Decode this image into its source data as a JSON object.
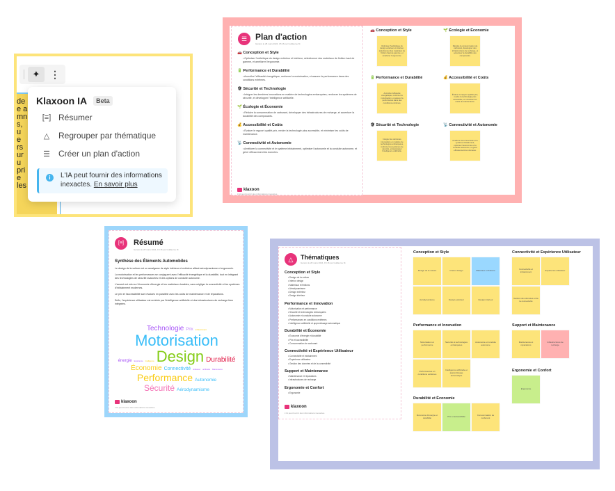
{
  "ai_panel": {
    "sticky_fragments": [
      "de",
      "e a",
      "mn",
      "s, u",
      "e",
      "rs",
      "ur u",
      "pri",
      "e",
      "les"
    ],
    "toolbar": {
      "ai_icon": "sparkles-icon",
      "more_icon": "more-vertical-icon"
    },
    "title": "Klaxoon IA",
    "badge": "Beta",
    "items": [
      {
        "icon": "summary-icon",
        "label": "Résumer"
      },
      {
        "icon": "group-shapes-icon",
        "label": "Regrouper par thématique"
      },
      {
        "icon": "checklist-icon",
        "label": "Créer un plan d'action"
      }
    ],
    "info": {
      "text": "L'IA peut fournir des informations inexactes.",
      "link": "En savoir plus"
    }
  },
  "colors": {
    "yellow_frame": "#fde47a",
    "pink_frame": "#ffb1b1",
    "blue_frame": "#9dd6fb",
    "purple_frame": "#bcc2e6",
    "sticky_yellow": "#fde47a",
    "sticky_blue": "#9ad8ff",
    "sticky_pink": "#ffb1b1",
    "sticky_green": "#c8ee8c",
    "brand": "#e8337a"
  },
  "action_plan": {
    "title": "Plan d'action",
    "subtitle": "Généré le 28 mars 2024, 15:16 par Guillaume M.",
    "sections": [
      {
        "icon": "🚗",
        "title": "Conception et Style",
        "text": "Optimiser l'esthétique du design extérieur et intérieur, sélectionner des matériaux de finition haut de gamme, et améliorer l'ergonomie."
      },
      {
        "icon": "🔋",
        "title": "Performance et Durabilité",
        "text": "Accroître l'efficacité énergétique, renforcer la motorisation, et assurer la performance dans des conditions extrêmes."
      },
      {
        "icon": "🛡",
        "title": "Sécurité et Technologie",
        "text": "Intégrer les dernières innovations en matière de technologies embarquées, renforcer les systèmes de sécurité, et développer l'intelligence artificielle."
      },
      {
        "icon": "🌱",
        "title": "Écologie et Économie",
        "text": "Réduire la consommation de carburant, développer des infrastructures de recharge, et accentuer la durabilité des composants."
      },
      {
        "icon": "💰",
        "title": "Accessibilité et Coûts",
        "text": "Évaluer le rapport qualité-prix, rendre la technologie plus accessible, et minimiser les coûts de maintenance."
      },
      {
        "icon": "📡",
        "title": "Connectivité et Autonomie",
        "text": "Améliorer la connectivité et le système infotainment, optimiser l'autonomie et la conduite autonome, et gérer efficacement les données."
      }
    ],
    "brand": "klaxoon",
    "footer": "L'IA peut fournir des informations inexactes."
  },
  "resume": {
    "title": "Résumé",
    "subtitle": "Généré le 28 mars 2024, 15:16 par Guillaume M.",
    "heading": "Synthèse des Éléments Automobiles",
    "paragraphs": [
      "Le design de la voiture est un amalgame de style intérieur et extérieur alliant aérodynamisme et ergonomie.",
      "La motorisation et les performances se conjuguent avec l'efficacité énergétique et la durabilité, tout en intégrant des technologies de sécurité avancées et des options de conduite autonome.",
      "L'accent est mis sur l'économie d'énergie et les matériaux durables, sans négliger la connectivité et les systèmes d'infotainment modernes.",
      "Le prix et l'accessibilité sont évalués en parallèle avec les coûts de maintenance et de réparations.",
      "Enfin, l'expérience utilisateur est enrichie par l'intelligence artificielle et des infrastructures de recharge bien intégrées."
    ],
    "cloud": [
      {
        "w": "Technologie",
        "c": "#a855f7"
      },
      {
        "w": "Prix",
        "c": "#c084fc"
      },
      {
        "w": "infotainment",
        "c": "#facc15"
      },
      {
        "w": "Motorisation",
        "c": "#38bdf8"
      },
      {
        "w": "énergie",
        "c": "#a855f7"
      },
      {
        "w": "Expérience",
        "c": "#a855f7"
      },
      {
        "w": "Intelligence",
        "c": "#facc15"
      },
      {
        "w": "Design",
        "c": "#84cc16"
      },
      {
        "w": "Durabilité",
        "c": "#e11d48"
      },
      {
        "w": "Économie",
        "c": "#facc15"
      },
      {
        "w": "Connectivité",
        "c": "#38bdf8"
      },
      {
        "w": "utilisateur",
        "c": "#a855f7"
      },
      {
        "w": "artificielle",
        "c": "#a855f7"
      },
      {
        "w": "Maintenance",
        "c": "#a855f7"
      },
      {
        "w": "Performance",
        "c": "#facc15"
      },
      {
        "w": "Sécurité",
        "c": "#f472b6"
      },
      {
        "w": "Autonomie",
        "c": "#38bdf8"
      },
      {
        "w": "Aérodynamisme",
        "c": "#38bdf8"
      }
    ],
    "brand": "klaxoon",
    "footer": "L'IA peut fournir des informations inexactes."
  },
  "themes": {
    "title": "Thématiques",
    "subtitle": "Généré le 28 mars 2024, 15:16 par Guillaume M.",
    "sections": [
      {
        "title": "Conception et Style",
        "items": [
          "Design de la voiture",
          "Interior design",
          "Matériaux et finitions",
          "Aérodynamisme",
          "Design extérieur",
          "Design intérieur"
        ]
      },
      {
        "title": "Performance et Innovation",
        "items": [
          "Motorisation et performance",
          "Sécurité et technologies embarquées",
          "Autonomie et conduite autonome",
          "Performances en conditions extrêmes",
          "Intelligence artificielle et apprentissage automatique"
        ]
      },
      {
        "title": "Durabilité et Économie",
        "items": [
          "Économie d'énergie et durabilité",
          "Prix et accessibilité",
          "Consommation de carburant"
        ]
      },
      {
        "title": "Connectivité et Expérience Utilisateur",
        "items": [
          "Connectivité et infotainment",
          "Expérience utilisateur",
          "Gestion des données et de la connectivité"
        ]
      },
      {
        "title": "Support et Maintenance",
        "items": [
          "Maintenance et réparations",
          "Infrastructures de recharge"
        ]
      },
      {
        "title": "Ergonomie et Confort",
        "items": [
          "Ergonomie"
        ]
      }
    ],
    "brand": "klaxoon",
    "footer": "L'IA peut fournir des informations inexactes.",
    "board": [
      {
        "title": "Conception et Style",
        "stickies": [
          {
            "t": "Design de la voiture",
            "c": "yellow"
          },
          {
            "t": "Interior design",
            "c": "yellow"
          },
          {
            "t": "Matériaux et finitions",
            "c": "blue"
          },
          {
            "t": "Aérodynamisme",
            "c": "yellow"
          },
          {
            "t": "Design extérieur",
            "c": "yellow"
          },
          {
            "t": "Design intérieur",
            "c": "yellow"
          }
        ]
      },
      {
        "title": "Performance et Innovation",
        "stickies": [
          {
            "t": "Motorisation et performance",
            "c": "yellow"
          },
          {
            "t": "Sécurité et technologies embarquées",
            "c": "yellow"
          },
          {
            "t": "Autonomie et conduite autonome",
            "c": "yellow"
          },
          {
            "t": "Performances en conditions extrêmes",
            "c": "yellow"
          },
          {
            "t": "Intelligence artificielle et apprentissage automatique",
            "c": "yellow"
          }
        ]
      },
      {
        "title": "Durabilité et Économie",
        "stickies": [
          {
            "t": "Économie d'énergie et durabilité",
            "c": "yellow"
          },
          {
            "t": "Prix et accessibilité",
            "c": "green"
          },
          {
            "t": "Consommation de carburant",
            "c": "yellow"
          }
        ]
      },
      {
        "title": "Connectivité et Expérience Utilisateur",
        "stickies": [
          {
            "t": "Connectivité et infotainment",
            "c": "yellow"
          },
          {
            "t": "Expérience utilisateur",
            "c": "yellow"
          },
          {
            "t": "Gestion des données et de la connectivité",
            "c": "yellow"
          }
        ]
      },
      {
        "title": "Support et Maintenance",
        "stickies": [
          {
            "t": "Maintenance et réparations",
            "c": "yellow"
          },
          {
            "t": "Infrastructures de recharge",
            "c": "pink"
          }
        ]
      },
      {
        "title": "Ergonomie et Confort",
        "stickies": [
          {
            "t": "Ergonomie",
            "c": "green"
          }
        ]
      }
    ]
  }
}
